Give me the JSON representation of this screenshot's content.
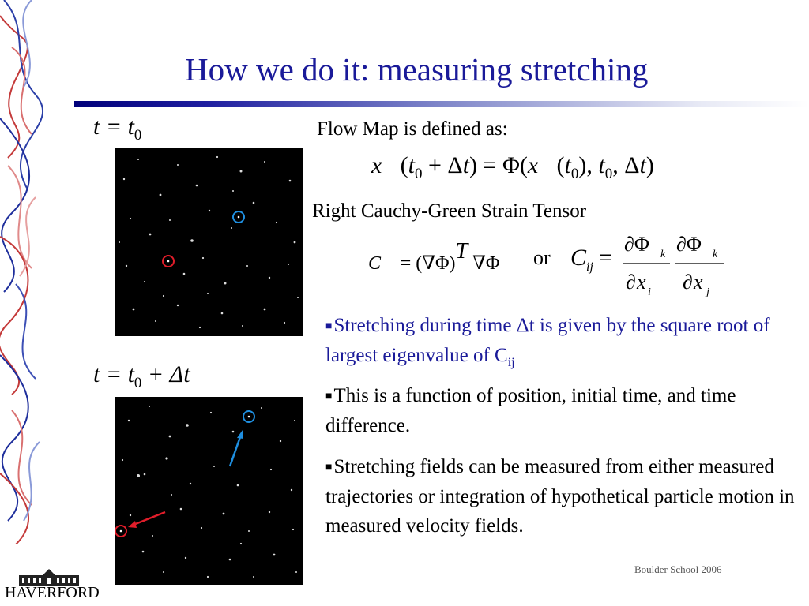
{
  "slide": {
    "title": "How we do it:  measuring stretching",
    "footer": "Boulder School 2006",
    "logo_text": "HAVERFORD"
  },
  "panels": {
    "top_label_main": "t = t",
    "top_label_sub": "0",
    "bottom_label_main": "t = t",
    "bottom_label_sub": "0",
    "bottom_label_tail": " + Δt"
  },
  "content": {
    "flow_map_heading": "Flow Map is defined as:",
    "cauchy_heading": "Right Cauchy-Green Strain Tensor",
    "or_word": "or",
    "bullets": [
      {
        "text": "Stretching during time Δt is given by the square root of largest eigenvalue of C",
        "sub": "ij"
      },
      {
        "text": "This is a function of position, initial time, and time difference."
      },
      {
        "text": "Stretching fields can be measured from either measured trajectories or integration of hypothetical particle motion in measured velocity fields."
      }
    ]
  },
  "colors": {
    "title": "#1a1a99",
    "highlight_blue": "#1f8fe0",
    "highlight_red": "#e01d2a"
  },
  "icons": {
    "bullet": "small-square-icon"
  }
}
